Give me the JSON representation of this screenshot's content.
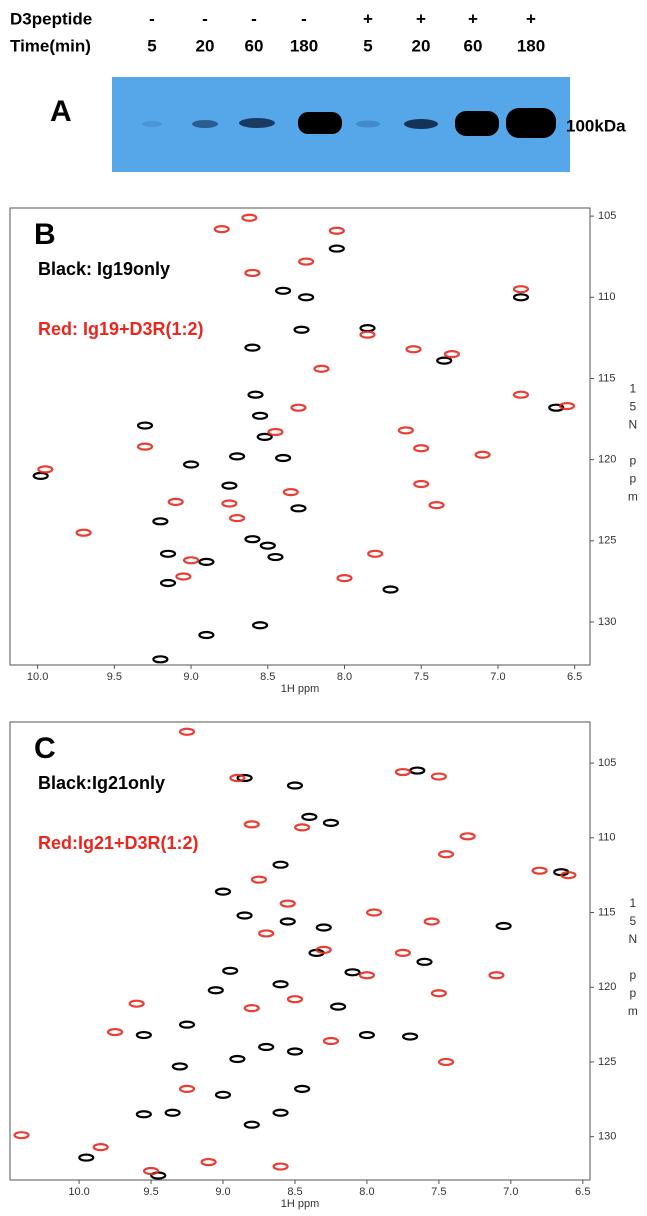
{
  "gel": {
    "panel": "A",
    "rows": [
      {
        "label": "D3peptide",
        "cells": [
          "-",
          "-",
          "-",
          "-",
          "+",
          "+",
          "+",
          "+"
        ]
      },
      {
        "label": "Time(min)",
        "cells": [
          5,
          20,
          60,
          180,
          5,
          20,
          60,
          180
        ]
      }
    ],
    "marker": "100kDa"
  },
  "chart_data": [
    {
      "type": "scatter",
      "panel": "B",
      "xlabel": "1H ppm",
      "ylabel": "15N ppm",
      "xlim": [
        10.18,
        6.4
      ],
      "ylim": [
        104.5,
        132.65
      ],
      "y_inverted": true,
      "xticks": [
        {
          "value": 10,
          "label": "10.0"
        },
        9.5,
        {
          "value": 9,
          "label": "9.0"
        },
        8.5,
        {
          "value": 8,
          "label": "8.0"
        },
        7.5,
        {
          "value": 7,
          "label": "7.0"
        },
        6.5
      ],
      "yticks": [
        105,
        110,
        115,
        120,
        125,
        130
      ],
      "series": [
        {
          "name": "Black: Ig19only",
          "color": "#000000",
          "x": [
            8.6,
            8.58,
            8.55,
            8.52,
            8.7,
            8.75,
            8.4,
            9.3,
            9.0,
            9.2,
            9.15,
            9.15,
            9.2,
            9.98,
            8.6,
            8.5,
            8.9,
            8.28,
            8.25,
            8.4,
            7.85,
            7.35,
            6.85,
            6.62,
            7.7,
            8.3,
            8.45,
            8.55,
            8.9,
            8.05
          ],
          "y": [
            113.1,
            116.0,
            117.3,
            118.6,
            119.8,
            121.6,
            119.9,
            117.9,
            120.3,
            123.8,
            125.8,
            127.6,
            132.3,
            121.0,
            124.9,
            125.3,
            126.3,
            112.0,
            110.0,
            109.6,
            111.9,
            113.9,
            110.0,
            116.8,
            128.0,
            123.0,
            126.0,
            130.2,
            130.8,
            107.0
          ]
        },
        {
          "name": "Red: Ig19+D3R(1:2)",
          "color": "#e8281e",
          "x": [
            8.62,
            8.8,
            8.05,
            8.6,
            8.25,
            7.85,
            7.55,
            7.3,
            6.85,
            6.85,
            6.55,
            7.6,
            7.5,
            7.1,
            8.15,
            8.3,
            8.45,
            9.3,
            9.95,
            9.7,
            9.1,
            8.75,
            8.35,
            8.0,
            7.8,
            7.5,
            7.4,
            9.05,
            9.0,
            8.7
          ],
          "y": [
            105.1,
            105.8,
            105.9,
            108.5,
            107.8,
            112.3,
            113.2,
            113.5,
            109.5,
            116.0,
            116.7,
            118.2,
            119.3,
            119.7,
            114.4,
            116.8,
            118.3,
            119.2,
            120.6,
            124.5,
            122.6,
            122.7,
            122.0,
            127.3,
            125.8,
            121.5,
            122.8,
            127.2,
            126.2,
            123.6
          ]
        }
      ]
    },
    {
      "type": "scatter",
      "panel": "C",
      "xlabel": "1H ppm",
      "ylabel": "15N ppm",
      "xlim": [
        10.48,
        6.45
      ],
      "ylim": [
        102.25,
        132.9
      ],
      "y_inverted": true,
      "xticks": [
        {
          "value": 10,
          "label": "10.0"
        },
        9.5,
        {
          "value": 9,
          "label": "9.0"
        },
        8.5,
        {
          "value": 8,
          "label": "8.0"
        },
        7.5,
        {
          "value": 7,
          "label": "7.0"
        },
        6.5
      ],
      "yticks": [
        105,
        110,
        115,
        120,
        125,
        130
      ],
      "series": [
        {
          "name": "Black:Ig21only",
          "color": "#000000",
          "x": [
            8.85,
            8.5,
            7.65,
            8.4,
            8.25,
            8.6,
            9.0,
            8.85,
            8.55,
            8.3,
            8.35,
            8.95,
            8.1,
            7.05,
            6.65,
            9.05,
            9.25,
            9.55,
            8.9,
            8.7,
            8.5,
            9.3,
            9.0,
            9.55,
            8.6,
            9.95,
            9.35,
            8.6,
            8.2,
            8.0,
            7.6,
            7.7,
            8.45,
            9.45,
            8.8
          ],
          "y": [
            106.0,
            106.5,
            105.5,
            108.6,
            109.0,
            111.8,
            113.6,
            115.2,
            115.6,
            116.0,
            117.7,
            118.9,
            119.0,
            115.9,
            112.3,
            120.2,
            122.5,
            123.2,
            124.8,
            124.0,
            124.3,
            125.3,
            127.2,
            128.5,
            128.4,
            131.4,
            128.4,
            119.8,
            121.3,
            123.2,
            118.3,
            123.3,
            126.8,
            132.6,
            129.2
          ]
        },
        {
          "name": "Red:Ig21+D3R(1:2)",
          "color": "#e8281e",
          "x": [
            9.25,
            8.9,
            7.75,
            7.5,
            8.8,
            8.45,
            7.3,
            7.45,
            6.8,
            6.6,
            8.75,
            8.55,
            7.95,
            7.55,
            8.7,
            8.3,
            7.75,
            7.1,
            7.5,
            9.6,
            8.8,
            8.5,
            8.0,
            8.25,
            7.45,
            9.75,
            9.25,
            9.85,
            10.4,
            9.5,
            8.6,
            9.1
          ],
          "y": [
            102.9,
            106.0,
            105.6,
            105.9,
            109.1,
            109.3,
            109.9,
            111.1,
            112.2,
            112.5,
            112.8,
            114.4,
            115.0,
            115.6,
            116.4,
            117.5,
            117.7,
            119.2,
            120.4,
            121.1,
            121.4,
            120.8,
            119.2,
            123.6,
            125.0,
            123.0,
            126.8,
            130.7,
            129.9,
            132.3,
            132.0,
            131.7
          ]
        }
      ]
    }
  ]
}
